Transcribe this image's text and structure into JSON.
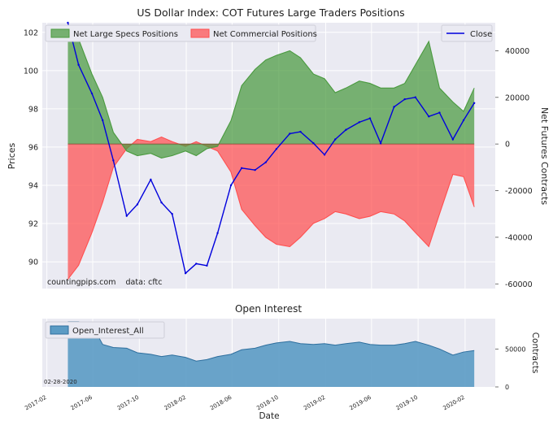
{
  "chart_data": [
    {
      "type": "area",
      "title": "US Dollar Index: COT Futures Large Traders Positions",
      "ylabel_left": "Prices",
      "ylabel_right": "Net Futures Contracts",
      "credit": "countingpips.com    data: cftc",
      "yticks_left": [
        "90",
        "92",
        "94",
        "96",
        "98",
        "100",
        "102"
      ],
      "yticks_right": [
        "40000",
        "20000",
        "0",
        "-20000",
        "-40000",
        "-60000"
      ],
      "ylim_left": [
        88.6,
        102.5
      ],
      "ylim_right": [
        -62000,
        52000
      ],
      "legend_left": [
        "Net Large Specs Positions",
        "Net Commercial Positions"
      ],
      "legend_right": [
        "Close"
      ],
      "colors": {
        "specs": "#4a9a3f",
        "commercial": "#ff4f4f",
        "close": "#0000dd"
      },
      "x": [
        "2017-03-28",
        "2017-04-25",
        "2017-05-30",
        "2017-06-27",
        "2017-07-25",
        "2017-08-29",
        "2017-09-26",
        "2017-10-31",
        "2017-11-28",
        "2017-12-26",
        "2018-01-30",
        "2018-02-27",
        "2018-03-27",
        "2018-04-24",
        "2018-05-29",
        "2018-06-26",
        "2018-07-31",
        "2018-08-28",
        "2018-09-25",
        "2018-10-30",
        "2018-11-27",
        "2018-12-31",
        "2019-01-29",
        "2019-02-26",
        "2019-03-26",
        "2019-04-30",
        "2019-05-28",
        "2019-06-25",
        "2019-07-30",
        "2019-08-27",
        "2019-09-24",
        "2019-10-29",
        "2019-11-26",
        "2019-12-31",
        "2020-01-28",
        "2020-02-25"
      ],
      "series": [
        {
          "name": "Net Large Specs Positions",
          "axis": "right",
          "values": [
            50000,
            45000,
            30000,
            20000,
            5000,
            -3000,
            -5000,
            -4000,
            -6000,
            -5000,
            -3000,
            -5000,
            -2000,
            -1000,
            10000,
            25000,
            32000,
            36000,
            38000,
            40000,
            37000,
            30000,
            28000,
            22000,
            24000,
            27000,
            26000,
            24000,
            24000,
            26000,
            34000,
            44000,
            24000,
            18000,
            14000,
            24000
          ]
        },
        {
          "name": "Net Commercial Positions",
          "axis": "right",
          "values": [
            -58000,
            -52000,
            -38000,
            -25000,
            -10000,
            -2000,
            2000,
            1000,
            3000,
            1000,
            -1000,
            1000,
            -1000,
            -3000,
            -12000,
            -28000,
            -35000,
            -40000,
            -43000,
            -44000,
            -40000,
            -34000,
            -32000,
            -29000,
            -30000,
            -32000,
            -31000,
            -29000,
            -30000,
            -33000,
            -38000,
            -44000,
            -30000,
            -13000,
            -14000,
            -27000
          ]
        },
        {
          "name": "Close",
          "axis": "left",
          "values": [
            102.5,
            100.3,
            98.8,
            97.4,
            95.3,
            92.4,
            93.0,
            94.3,
            93.1,
            92.5,
            89.4,
            89.9,
            89.8,
            91.5,
            94.0,
            94.9,
            94.8,
            95.2,
            95.9,
            96.7,
            96.8,
            96.2,
            95.6,
            96.4,
            96.9,
            97.3,
            97.5,
            96.2,
            98.1,
            98.5,
            98.6,
            97.6,
            97.8,
            96.4,
            97.4,
            98.3
          ]
        }
      ]
    },
    {
      "type": "area",
      "title": "Open Interest",
      "xlabel": "Date",
      "ylabel_right": "Contracts",
      "yticks_right": [
        "50000",
        "0"
      ],
      "ylim_right": [
        0,
        90000
      ],
      "xticks": [
        "2017-02",
        "2017-06",
        "2017-10",
        "2018-02",
        "2018-06",
        "2018-10",
        "2019-02",
        "2019-06",
        "2019-10",
        "2020-02"
      ],
      "date_label": "02-28-2020",
      "legend": [
        "Open_Interest_All"
      ],
      "colors": {
        "area": "#5b9bc4",
        "line": "#2e6f9e"
      },
      "x": [
        "2017-03-28",
        "2017-04-25",
        "2017-05-30",
        "2017-06-27",
        "2017-07-25",
        "2017-08-29",
        "2017-09-26",
        "2017-10-31",
        "2017-11-28",
        "2017-12-26",
        "2018-01-30",
        "2018-02-27",
        "2018-03-27",
        "2018-04-24",
        "2018-05-29",
        "2018-06-26",
        "2018-07-31",
        "2018-08-28",
        "2018-09-25",
        "2018-10-30",
        "2018-11-27",
        "2018-12-31",
        "2019-01-29",
        "2019-02-26",
        "2019-03-26",
        "2019-04-30",
        "2019-05-28",
        "2019-06-25",
        "2019-07-30",
        "2019-08-27",
        "2019-09-24",
        "2019-10-29",
        "2019-11-26",
        "2019-12-31",
        "2020-01-28",
        "2020-02-25"
      ],
      "values": [
        86000,
        86000,
        82000,
        56000,
        52000,
        51000,
        45000,
        43000,
        40000,
        42000,
        39000,
        34000,
        36000,
        40000,
        43000,
        49000,
        51000,
        55000,
        58000,
        60000,
        57000,
        56000,
        57000,
        55000,
        57000,
        59000,
        56000,
        55000,
        55000,
        57000,
        60000,
        55000,
        50000,
        42000,
        46000,
        48000
      ]
    }
  ]
}
